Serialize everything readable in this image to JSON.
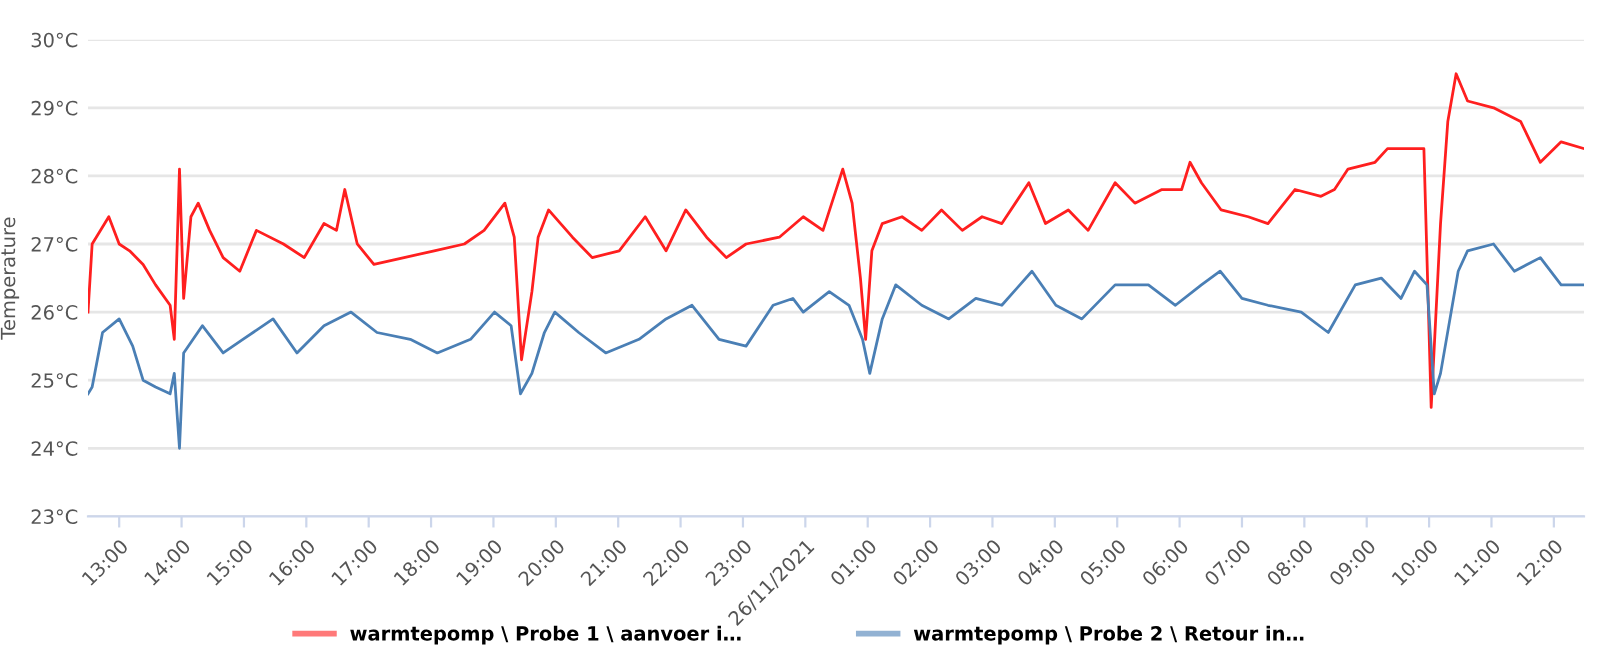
{
  "chart_data": {
    "type": "line",
    "ylabel": "Temperature",
    "xlim": [
      "2021-11-25T12:30",
      "2021-11-26T12:29"
    ],
    "ylim": [
      23,
      30
    ],
    "xticks": [
      {
        "value": "2021-11-25T13:00",
        "label": "13:00"
      },
      {
        "value": "2021-11-25T14:00",
        "label": "14:00"
      },
      {
        "value": "2021-11-25T15:00",
        "label": "15:00"
      },
      {
        "value": "2021-11-25T16:00",
        "label": "16:00"
      },
      {
        "value": "2021-11-25T17:00",
        "label": "17:00"
      },
      {
        "value": "2021-11-25T18:00",
        "label": "18:00"
      },
      {
        "value": "2021-11-25T19:00",
        "label": "19:00"
      },
      {
        "value": "2021-11-25T20:00",
        "label": "20:00"
      },
      {
        "value": "2021-11-25T21:00",
        "label": "21:00"
      },
      {
        "value": "2021-11-25T22:00",
        "label": "22:00"
      },
      {
        "value": "2021-11-25T23:00",
        "label": "23:00"
      },
      {
        "value": "2021-11-26T00:00",
        "label": "26/11/2021"
      },
      {
        "value": "2021-11-26T01:00",
        "label": "01:00"
      },
      {
        "value": "2021-11-26T02:00",
        "label": "02:00"
      },
      {
        "value": "2021-11-26T03:00",
        "label": "03:00"
      },
      {
        "value": "2021-11-26T04:00",
        "label": "04:00"
      },
      {
        "value": "2021-11-26T05:00",
        "label": "05:00"
      },
      {
        "value": "2021-11-26T06:00",
        "label": "06:00"
      },
      {
        "value": "2021-11-26T07:00",
        "label": "07:00"
      },
      {
        "value": "2021-11-26T08:00",
        "label": "08:00"
      },
      {
        "value": "2021-11-26T09:00",
        "label": "09:00"
      },
      {
        "value": "2021-11-26T10:00",
        "label": "10:00"
      },
      {
        "value": "2021-11-26T11:00",
        "label": "11:00"
      },
      {
        "value": "2021-11-26T12:00",
        "label": "12:00"
      }
    ],
    "yticks": [
      {
        "value": 23,
        "label": "23°C"
      },
      {
        "value": 24,
        "label": "24°C"
      },
      {
        "value": 25,
        "label": "25°C"
      },
      {
        "value": 26,
        "label": "26°C"
      },
      {
        "value": 27,
        "label": "27°C"
      },
      {
        "value": 28,
        "label": "28°C"
      },
      {
        "value": 29,
        "label": "29°C"
      },
      {
        "value": 30,
        "label": "30°C"
      }
    ],
    "grid": "y",
    "legend": "bottom",
    "marker": "none",
    "line_style": "solid",
    "series": [
      {
        "name": "warmtepomp \\ Probe 1 \\ aanvoer i…",
        "color": "#ff1f1f",
        "x": [
          "2021-11-25T12:30",
          "2021-11-25T12:34",
          "2021-11-25T12:50",
          "2021-11-25T13:00",
          "2021-11-25T13:10",
          "2021-11-25T13:23",
          "2021-11-25T13:35",
          "2021-11-25T13:49",
          "2021-11-25T13:53",
          "2021-11-25T13:58",
          "2021-11-25T14:02",
          "2021-11-25T14:09",
          "2021-11-25T14:16",
          "2021-11-25T14:27",
          "2021-11-25T14:40",
          "2021-11-25T14:56",
          "2021-11-25T15:12",
          "2021-11-25T15:38",
          "2021-11-25T15:58",
          "2021-11-25T16:17",
          "2021-11-25T16:29",
          "2021-11-25T16:37",
          "2021-11-25T16:49",
          "2021-11-25T17:05",
          "2021-11-25T17:34",
          "2021-11-25T18:03",
          "2021-11-25T18:32",
          "2021-11-25T18:51",
          "2021-11-25T19:11",
          "2021-11-25T19:20",
          "2021-11-25T19:27",
          "2021-11-25T19:37",
          "2021-11-25T19:43",
          "2021-11-25T19:53",
          "2021-11-25T20:16",
          "2021-11-25T20:35",
          "2021-11-25T21:01",
          "2021-11-25T21:26",
          "2021-11-25T21:46",
          "2021-11-25T22:05",
          "2021-11-25T22:25",
          "2021-11-25T22:44",
          "2021-11-25T23:03",
          "2021-11-25T23:35",
          "2021-11-25T23:58",
          "2021-11-26T00:17",
          "2021-11-26T00:36",
          "2021-11-26T00:45",
          "2021-11-26T00:53",
          "2021-11-26T00:58",
          "2021-11-26T01:04",
          "2021-11-26T01:14",
          "2021-11-26T01:33",
          "2021-11-26T01:52",
          "2021-11-26T02:11",
          "2021-11-26T02:31",
          "2021-11-26T02:50",
          "2021-11-26T03:09",
          "2021-11-26T03:35",
          "2021-11-26T03:51",
          "2021-11-26T04:13",
          "2021-11-26T04:32",
          "2021-11-26T04:58",
          "2021-11-26T05:17",
          "2021-11-26T05:43",
          "2021-11-26T06:02",
          "2021-11-26T06:10",
          "2021-11-26T06:21",
          "2021-11-26T06:40",
          "2021-11-26T07:06",
          "2021-11-26T07:25",
          "2021-11-26T07:51",
          "2021-11-26T08:16",
          "2021-11-26T08:29",
          "2021-11-26T08:42",
          "2021-11-26T09:08",
          "2021-11-26T09:20",
          "2021-11-26T09:40",
          "2021-11-26T09:55",
          "2021-11-26T10:02",
          "2021-11-26T10:11",
          "2021-11-26T10:18",
          "2021-11-26T10:26",
          "2021-11-26T10:37",
          "2021-11-26T11:02",
          "2021-11-26T11:28",
          "2021-11-26T11:47",
          "2021-11-26T12:07",
          "2021-11-26T12:29"
        ],
        "values": [
          26.0,
          27.0,
          27.4,
          27.0,
          26.9,
          26.7,
          26.4,
          26.1,
          25.6,
          28.1,
          26.2,
          27.4,
          27.6,
          27.2,
          26.8,
          26.6,
          27.2,
          27.0,
          26.8,
          27.3,
          27.2,
          27.8,
          27.0,
          26.7,
          26.8,
          26.9,
          27.0,
          27.2,
          27.6,
          27.1,
          25.3,
          26.3,
          27.1,
          27.5,
          27.1,
          26.8,
          26.9,
          27.4,
          26.9,
          27.5,
          27.1,
          26.8,
          27.0,
          27.1,
          27.4,
          27.2,
          28.1,
          27.6,
          26.5,
          25.6,
          26.9,
          27.3,
          27.4,
          27.2,
          27.5,
          27.2,
          27.4,
          27.3,
          27.9,
          27.3,
          27.5,
          27.2,
          27.9,
          27.6,
          27.8,
          27.8,
          28.2,
          27.9,
          27.5,
          27.4,
          27.3,
          27.8,
          27.7,
          27.8,
          28.1,
          28.2,
          28.4,
          28.4,
          28.4,
          24.6,
          27.3,
          28.8,
          29.5,
          29.1,
          29.0,
          28.8,
          28.2,
          28.5,
          28.4
        ]
      },
      {
        "name": "warmtepomp \\ Probe 2 \\ Retour in…",
        "color": "#4a7fb5",
        "x": [
          "2021-11-25T12:30",
          "2021-11-25T12:34",
          "2021-11-25T12:44",
          "2021-11-25T13:00",
          "2021-11-25T13:13",
          "2021-11-25T13:23",
          "2021-11-25T13:35",
          "2021-11-25T13:49",
          "2021-11-25T13:53",
          "2021-11-25T13:58",
          "2021-11-25T14:02",
          "2021-11-25T14:20",
          "2021-11-25T14:40",
          "2021-11-25T14:59",
          "2021-11-25T15:28",
          "2021-11-25T15:51",
          "2021-11-25T16:17",
          "2021-11-25T16:43",
          "2021-11-25T17:08",
          "2021-11-25T17:40",
          "2021-11-25T18:06",
          "2021-11-25T18:38",
          "2021-11-25T19:01",
          "2021-11-25T19:17",
          "2021-11-25T19:26",
          "2021-11-25T19:37",
          "2021-11-25T19:49",
          "2021-11-25T19:59",
          "2021-11-25T20:22",
          "2021-11-25T20:48",
          "2021-11-25T21:20",
          "2021-11-25T21:46",
          "2021-11-25T22:11",
          "2021-11-25T22:37",
          "2021-11-25T23:03",
          "2021-11-25T23:29",
          "2021-11-25T23:48",
          "2021-11-25T23:58",
          "2021-11-26T00:23",
          "2021-11-26T00:42",
          "2021-11-26T00:55",
          "2021-11-26T01:02",
          "2021-11-26T01:14",
          "2021-11-26T01:27",
          "2021-11-26T01:52",
          "2021-11-26T02:18",
          "2021-11-26T02:44",
          "2021-11-26T03:09",
          "2021-11-26T03:38",
          "2021-11-26T04:01",
          "2021-11-26T04:26",
          "2021-11-26T04:58",
          "2021-11-26T05:30",
          "2021-11-26T05:56",
          "2021-11-26T06:21",
          "2021-11-26T06:39",
          "2021-11-26T07:00",
          "2021-11-26T07:25",
          "2021-11-26T07:57",
          "2021-11-26T08:23",
          "2021-11-26T08:49",
          "2021-11-26T09:14",
          "2021-11-26T09:33",
          "2021-11-26T09:46",
          "2021-11-26T09:58",
          "2021-11-26T10:05",
          "2021-11-26T10:11",
          "2021-11-26T10:28",
          "2021-11-26T10:37",
          "2021-11-26T11:02",
          "2021-11-26T11:22",
          "2021-11-26T11:47",
          "2021-11-26T12:07",
          "2021-11-26T12:29"
        ],
        "values": [
          24.8,
          24.9,
          25.7,
          25.9,
          25.5,
          25.0,
          24.9,
          24.8,
          25.1,
          24.0,
          25.4,
          25.8,
          25.4,
          25.6,
          25.9,
          25.4,
          25.8,
          26.0,
          25.7,
          25.6,
          25.4,
          25.6,
          26.0,
          25.8,
          24.8,
          25.1,
          25.7,
          26.0,
          25.7,
          25.4,
          25.6,
          25.9,
          26.1,
          25.6,
          25.5,
          26.1,
          26.2,
          26.0,
          26.3,
          26.1,
          25.6,
          25.1,
          25.9,
          26.4,
          26.1,
          25.9,
          26.2,
          26.1,
          26.6,
          26.1,
          25.9,
          26.4,
          26.4,
          26.1,
          26.4,
          26.6,
          26.2,
          26.1,
          26.0,
          25.7,
          26.4,
          26.5,
          26.2,
          26.6,
          26.4,
          24.8,
          25.1,
          26.6,
          26.9,
          27.0,
          26.6,
          26.8,
          26.4,
          26.4
        ]
      }
    ]
  }
}
